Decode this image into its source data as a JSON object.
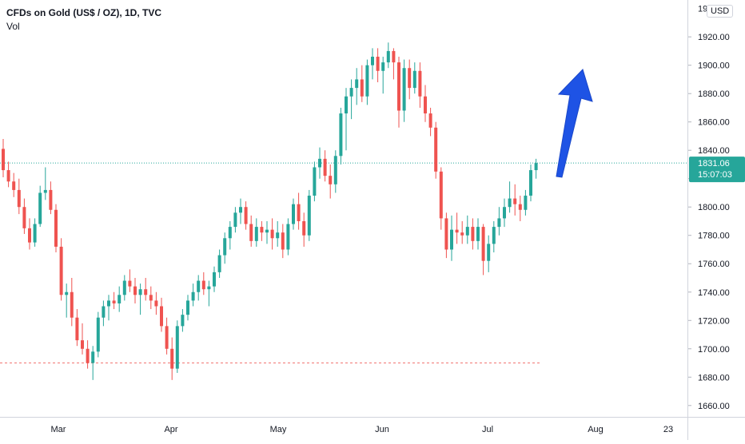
{
  "legend": {
    "title": "CFDs on Gold (US$ / OZ), 1D, TVC",
    "volume_label": "Vol"
  },
  "currency": "USD",
  "price_axis": {
    "ticks": [
      "1920.00",
      "1900.00",
      "1880.00",
      "1860.00",
      "1840.00",
      "1820.00",
      "1800.00",
      "1780.00",
      "1760.00",
      "1740.00",
      "1720.00",
      "1700.00",
      "1680.00",
      "1660.00"
    ],
    "top_partial_label": "1940.00"
  },
  "time_axis": {
    "labels": [
      "Mar",
      "Apr",
      "May",
      "Jun",
      "Jul",
      "Aug",
      "23"
    ]
  },
  "last_price": {
    "price": "1831.06",
    "countdown": "15:07:03"
  },
  "colors": {
    "up": "#26a69a",
    "down": "#ef5350",
    "arrow": "#1e53e5",
    "last_line": "#26a69a"
  },
  "chart_data": {
    "type": "candlestick",
    "title": "CFDs on Gold (US$ / OZ), 1D, TVC",
    "ylim": [
      1652,
      1946
    ],
    "support_level": 1690,
    "last_price": 1831.06,
    "x_labels": [
      "Mar",
      "Apr",
      "May",
      "Jun",
      "Jul",
      "Aug",
      "23"
    ],
    "annotation": "blue upward arrow",
    "candles": [
      [
        1841,
        1848,
        1821,
        1826
      ],
      [
        1826,
        1832,
        1814,
        1818
      ],
      [
        1818,
        1824,
        1807,
        1812
      ],
      [
        1812,
        1820,
        1795,
        1800
      ],
      [
        1800,
        1806,
        1781,
        1785
      ],
      [
        1785,
        1792,
        1770,
        1775
      ],
      [
        1775,
        1792,
        1772,
        1788
      ],
      [
        1788,
        1815,
        1786,
        1810
      ],
      [
        1810,
        1828,
        1805,
        1812
      ],
      [
        1812,
        1818,
        1795,
        1798
      ],
      [
        1798,
        1802,
        1768,
        1772
      ],
      [
        1772,
        1778,
        1734,
        1738
      ],
      [
        1738,
        1746,
        1722,
        1740
      ],
      [
        1740,
        1750,
        1716,
        1722
      ],
      [
        1722,
        1728,
        1702,
        1706
      ],
      [
        1706,
        1718,
        1696,
        1700
      ],
      [
        1700,
        1706,
        1686,
        1690
      ],
      [
        1690,
        1702,
        1678,
        1698
      ],
      [
        1698,
        1726,
        1694,
        1722
      ],
      [
        1722,
        1734,
        1716,
        1730
      ],
      [
        1730,
        1738,
        1720,
        1734
      ],
      [
        1734,
        1740,
        1728,
        1732
      ],
      [
        1732,
        1744,
        1726,
        1738
      ],
      [
        1738,
        1752,
        1734,
        1748
      ],
      [
        1748,
        1756,
        1740,
        1744
      ],
      [
        1744,
        1750,
        1732,
        1738
      ],
      [
        1738,
        1746,
        1724,
        1742
      ],
      [
        1742,
        1750,
        1734,
        1738
      ],
      [
        1738,
        1744,
        1728,
        1734
      ],
      [
        1734,
        1740,
        1724,
        1730
      ],
      [
        1730,
        1736,
        1712,
        1716
      ],
      [
        1716,
        1722,
        1696,
        1700
      ],
      [
        1700,
        1708,
        1678,
        1686
      ],
      [
        1686,
        1720,
        1683,
        1716
      ],
      [
        1716,
        1728,
        1712,
        1724
      ],
      [
        1724,
        1738,
        1720,
        1734
      ],
      [
        1734,
        1746,
        1730,
        1740
      ],
      [
        1740,
        1752,
        1734,
        1748
      ],
      [
        1748,
        1754,
        1738,
        1742
      ],
      [
        1742,
        1748,
        1730,
        1744
      ],
      [
        1744,
        1758,
        1740,
        1754
      ],
      [
        1754,
        1770,
        1750,
        1766
      ],
      [
        1766,
        1782,
        1760,
        1778
      ],
      [
        1778,
        1790,
        1770,
        1786
      ],
      [
        1786,
        1800,
        1782,
        1796
      ],
      [
        1796,
        1806,
        1788,
        1800
      ],
      [
        1800,
        1804,
        1784,
        1788
      ],
      [
        1788,
        1794,
        1772,
        1776
      ],
      [
        1776,
        1792,
        1772,
        1786
      ],
      [
        1786,
        1790,
        1776,
        1782
      ],
      [
        1782,
        1790,
        1774,
        1784
      ],
      [
        1784,
        1792,
        1770,
        1778
      ],
      [
        1778,
        1790,
        1772,
        1782
      ],
      [
        1782,
        1788,
        1764,
        1770
      ],
      [
        1770,
        1792,
        1766,
        1788
      ],
      [
        1788,
        1806,
        1784,
        1802
      ],
      [
        1802,
        1810,
        1784,
        1790
      ],
      [
        1790,
        1796,
        1772,
        1780
      ],
      [
        1780,
        1812,
        1776,
        1808
      ],
      [
        1808,
        1832,
        1804,
        1828
      ],
      [
        1828,
        1842,
        1820,
        1834
      ],
      [
        1834,
        1840,
        1818,
        1822
      ],
      [
        1822,
        1830,
        1806,
        1816
      ],
      [
        1816,
        1840,
        1810,
        1836
      ],
      [
        1836,
        1870,
        1830,
        1866
      ],
      [
        1866,
        1884,
        1840,
        1878
      ],
      [
        1878,
        1890,
        1862,
        1884
      ],
      [
        1884,
        1898,
        1872,
        1890
      ],
      [
        1890,
        1900,
        1874,
        1878
      ],
      [
        1878,
        1904,
        1872,
        1900
      ],
      [
        1900,
        1912,
        1890,
        1906
      ],
      [
        1906,
        1912,
        1888,
        1896
      ],
      [
        1896,
        1906,
        1880,
        1902
      ],
      [
        1902,
        1916,
        1898,
        1910
      ],
      [
        1910,
        1912,
        1890,
        1902
      ],
      [
        1902,
        1906,
        1856,
        1868
      ],
      [
        1868,
        1904,
        1860,
        1898
      ],
      [
        1898,
        1904,
        1876,
        1884
      ],
      [
        1884,
        1902,
        1880,
        1896
      ],
      [
        1896,
        1902,
        1870,
        1878
      ],
      [
        1878,
        1886,
        1860,
        1866
      ],
      [
        1866,
        1870,
        1850,
        1856
      ],
      [
        1856,
        1860,
        1820,
        1825
      ],
      [
        1825,
        1828,
        1784,
        1792
      ],
      [
        1792,
        1796,
        1764,
        1770
      ],
      [
        1770,
        1794,
        1762,
        1784
      ],
      [
        1784,
        1796,
        1774,
        1782
      ],
      [
        1782,
        1790,
        1774,
        1780
      ],
      [
        1780,
        1794,
        1774,
        1786
      ],
      [
        1786,
        1792,
        1770,
        1776
      ],
      [
        1776,
        1792,
        1770,
        1786
      ],
      [
        1786,
        1788,
        1752,
        1762
      ],
      [
        1762,
        1780,
        1754,
        1774
      ],
      [
        1774,
        1790,
        1768,
        1786
      ],
      [
        1786,
        1800,
        1780,
        1792
      ],
      [
        1792,
        1806,
        1786,
        1800
      ],
      [
        1800,
        1818,
        1796,
        1806
      ],
      [
        1806,
        1816,
        1794,
        1802
      ],
      [
        1802,
        1808,
        1790,
        1798
      ],
      [
        1798,
        1812,
        1794,
        1808
      ],
      [
        1808,
        1830,
        1804,
        1826
      ],
      [
        1826,
        1834,
        1820,
        1831
      ]
    ]
  }
}
